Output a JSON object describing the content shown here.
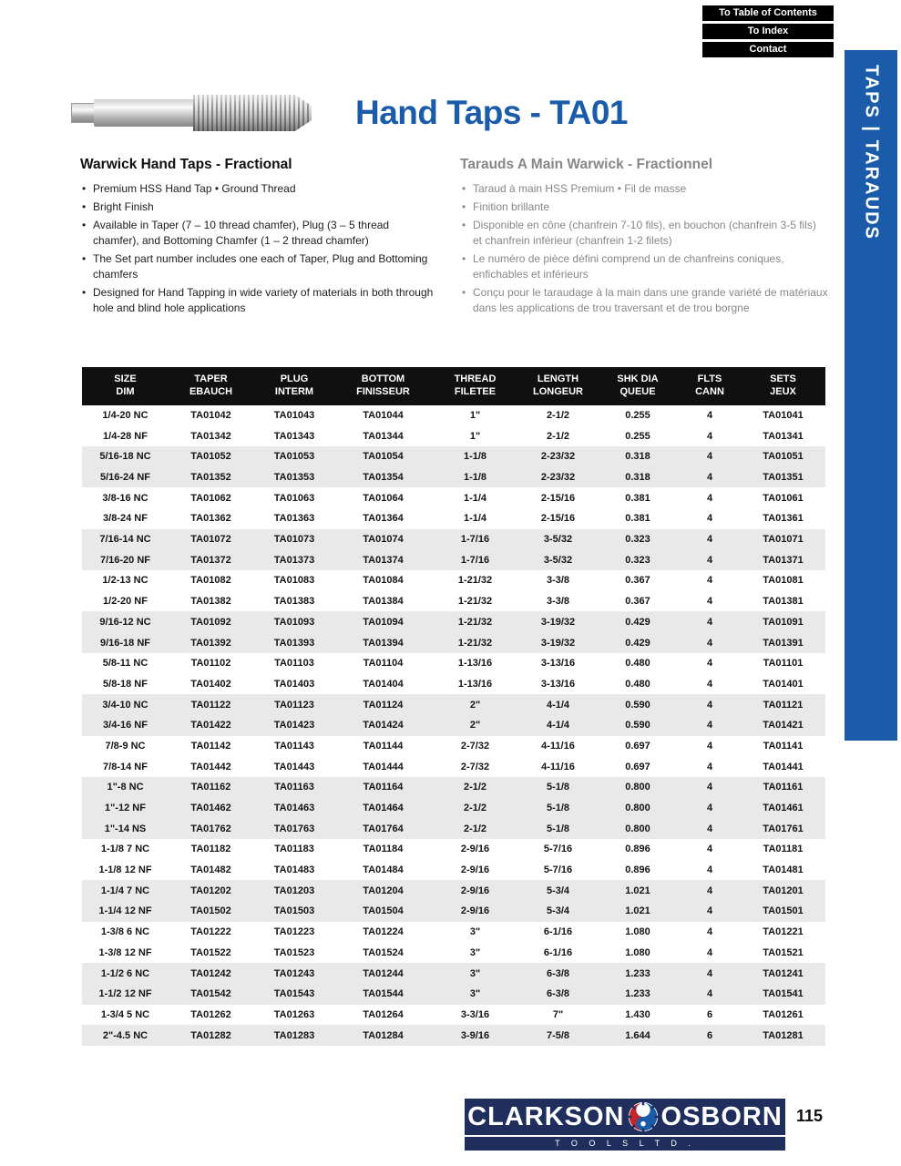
{
  "colors": {
    "accent_blue": "#1b5caa",
    "navy": "#1f2e5c",
    "band_gray": "#e9e9e9",
    "french_gray": "#878787",
    "logo_red": "#c0272d",
    "button_black": "#000000"
  },
  "nav": {
    "links": [
      {
        "label": "To Table of Contents"
      },
      {
        "label": "To Index"
      },
      {
        "label": "Contact"
      }
    ]
  },
  "side_tab": {
    "label": "TAPS | TARAUDS"
  },
  "header": {
    "title": "Hand Taps - TA01"
  },
  "intro": {
    "english": {
      "heading": "Warwick Hand Taps - Fractional",
      "bullets": [
        "Premium HSS Hand Tap  •  Ground Thread",
        "Bright Finish",
        "Available in Taper (7 – 10 thread chamfer), Plug (3 – 5 thread chamfer), and Bottoming Chamfer (1 – 2 thread chamfer)",
        "The Set part number includes one each of Taper, Plug and Bottoming chamfers",
        "Designed for Hand Tapping in wide variety of materials in both through hole and blind hole applications"
      ]
    },
    "french": {
      "heading": "Tarauds A Main Warwick - Fractionnel",
      "bullets": [
        "Taraud à main HSS Premium  •  Fil de masse",
        "Finition brillante",
        "Disponible en cône (chanfrein 7-10 fils), en bouchon (chanfrein 3-5 fils) et chanfrein inférieur (chanfrein 1-2 filets)",
        "Le numéro de pièce défini comprend un de chanfreins coniques, enfichables et inférieurs",
        "Conçu pour le taraudage à la main dans une grande variété de matériaux dans les applications de trou traversant et de trou borgne"
      ]
    }
  },
  "table": {
    "columns": [
      {
        "en": "SIZE",
        "fr": "DIM"
      },
      {
        "en": "TAPER",
        "fr": "EBAUCH"
      },
      {
        "en": "PLUG",
        "fr": "INTERM"
      },
      {
        "en": "BOTTOM",
        "fr": "FINISSEUR"
      },
      {
        "en": "THREAD",
        "fr": "FILETEE"
      },
      {
        "en": "LENGTH",
        "fr": "LONGEUR"
      },
      {
        "en": "SHK DIA",
        "fr": "QUEUE"
      },
      {
        "en": "FLTS",
        "fr": "CANN"
      },
      {
        "en": "SETS",
        "fr": "JEUX"
      }
    ],
    "rows": [
      [
        "1/4-20 NC",
        "TA01042",
        "TA01043",
        "TA01044",
        "1\"",
        "2-1/2",
        "0.255",
        "4",
        "TA01041"
      ],
      [
        "1/4-28 NF",
        "TA01342",
        "TA01343",
        "TA01344",
        "1\"",
        "2-1/2",
        "0.255",
        "4",
        "TA01341"
      ],
      [
        "5/16-18 NC",
        "TA01052",
        "TA01053",
        "TA01054",
        "1-1/8",
        "2-23/32",
        "0.318",
        "4",
        "TA01051"
      ],
      [
        "5/16-24 NF",
        "TA01352",
        "TA01353",
        "TA01354",
        "1-1/8",
        "2-23/32",
        "0.318",
        "4",
        "TA01351"
      ],
      [
        "3/8-16 NC",
        "TA01062",
        "TA01063",
        "TA01064",
        "1-1/4",
        "2-15/16",
        "0.381",
        "4",
        "TA01061"
      ],
      [
        "3/8-24 NF",
        "TA01362",
        "TA01363",
        "TA01364",
        "1-1/4",
        "2-15/16",
        "0.381",
        "4",
        "TA01361"
      ],
      [
        "7/16-14 NC",
        "TA01072",
        "TA01073",
        "TA01074",
        "1-7/16",
        "3-5/32",
        "0.323",
        "4",
        "TA01071"
      ],
      [
        "7/16-20 NF",
        "TA01372",
        "TA01373",
        "TA01374",
        "1-7/16",
        "3-5/32",
        "0.323",
        "4",
        "TA01371"
      ],
      [
        "1/2-13 NC",
        "TA01082",
        "TA01083",
        "TA01084",
        "1-21/32",
        "3-3/8",
        "0.367",
        "4",
        "TA01081"
      ],
      [
        "1/2-20 NF",
        "TA01382",
        "TA01383",
        "TA01384",
        "1-21/32",
        "3-3/8",
        "0.367",
        "4",
        "TA01381"
      ],
      [
        "9/16-12 NC",
        "TA01092",
        "TA01093",
        "TA01094",
        "1-21/32",
        "3-19/32",
        "0.429",
        "4",
        "TA01091"
      ],
      [
        "9/16-18 NF",
        "TA01392",
        "TA01393",
        "TA01394",
        "1-21/32",
        "3-19/32",
        "0.429",
        "4",
        "TA01391"
      ],
      [
        "5/8-11 NC",
        "TA01102",
        "TA01103",
        "TA01104",
        "1-13/16",
        "3-13/16",
        "0.480",
        "4",
        "TA01101"
      ],
      [
        "5/8-18 NF",
        "TA01402",
        "TA01403",
        "TA01404",
        "1-13/16",
        "3-13/16",
        "0.480",
        "4",
        "TA01401"
      ],
      [
        "3/4-10 NC",
        "TA01122",
        "TA01123",
        "TA01124",
        "2\"",
        "4-1/4",
        "0.590",
        "4",
        "TA01121"
      ],
      [
        "3/4-16 NF",
        "TA01422",
        "TA01423",
        "TA01424",
        "2\"",
        "4-1/4",
        "0.590",
        "4",
        "TA01421"
      ],
      [
        "7/8-9 NC",
        "TA01142",
        "TA01143",
        "TA01144",
        "2-7/32",
        "4-11/16",
        "0.697",
        "4",
        "TA01141"
      ],
      [
        "7/8-14 NF",
        "TA01442",
        "TA01443",
        "TA01444",
        "2-7/32",
        "4-11/16",
        "0.697",
        "4",
        "TA01441"
      ],
      [
        "1\"-8 NC",
        "TA01162",
        "TA01163",
        "TA01164",
        "2-1/2",
        "5-1/8",
        "0.800",
        "4",
        "TA01161"
      ],
      [
        "1\"-12 NF",
        "TA01462",
        "TA01463",
        "TA01464",
        "2-1/2",
        "5-1/8",
        "0.800",
        "4",
        "TA01461"
      ],
      [
        "1\"-14 NS",
        "TA01762",
        "TA01763",
        "TA01764",
        "2-1/2",
        "5-1/8",
        "0.800",
        "4",
        "TA01761"
      ],
      [
        "1-1/8 7 NC",
        "TA01182",
        "TA01183",
        "TA01184",
        "2-9/16",
        "5-7/16",
        "0.896",
        "4",
        "TA01181"
      ],
      [
        "1-1/8 12 NF",
        "TA01482",
        "TA01483",
        "TA01484",
        "2-9/16",
        "5-7/16",
        "0.896",
        "4",
        "TA01481"
      ],
      [
        "1-1/4 7 NC",
        "TA01202",
        "TA01203",
        "TA01204",
        "2-9/16",
        "5-3/4",
        "1.021",
        "4",
        "TA01201"
      ],
      [
        "1-1/4 12 NF",
        "TA01502",
        "TA01503",
        "TA01504",
        "2-9/16",
        "5-3/4",
        "1.021",
        "4",
        "TA01501"
      ],
      [
        "1-3/8 6 NC",
        "TA01222",
        "TA01223",
        "TA01224",
        "3\"",
        "6-1/16",
        "1.080",
        "4",
        "TA01221"
      ],
      [
        "1-3/8 12 NF",
        "TA01522",
        "TA01523",
        "TA01524",
        "3\"",
        "6-1/16",
        "1.080",
        "4",
        "TA01521"
      ],
      [
        "1-1/2 6 NC",
        "TA01242",
        "TA01243",
        "TA01244",
        "3\"",
        "6-3/8",
        "1.233",
        "4",
        "TA01241"
      ],
      [
        "1-1/2 12 NF",
        "TA01542",
        "TA01543",
        "TA01544",
        "3\"",
        "6-3/8",
        "1.233",
        "4",
        "TA01541"
      ],
      [
        "1-3/4 5 NC",
        "TA01262",
        "TA01263",
        "TA01264",
        "3-3/16",
        "7\"",
        "1.430",
        "6",
        "TA01261"
      ],
      [
        "2\"-4.5 NC",
        "TA01282",
        "TA01283",
        "TA01284",
        "3-9/16",
        "7-5/8",
        "1.644",
        "6",
        "TA01281"
      ]
    ]
  },
  "footer": {
    "brand_left": "CLARKSON",
    "brand_right": "OSBORN",
    "brand_sub": "T O O L S     L T D .",
    "page_number": "115"
  }
}
